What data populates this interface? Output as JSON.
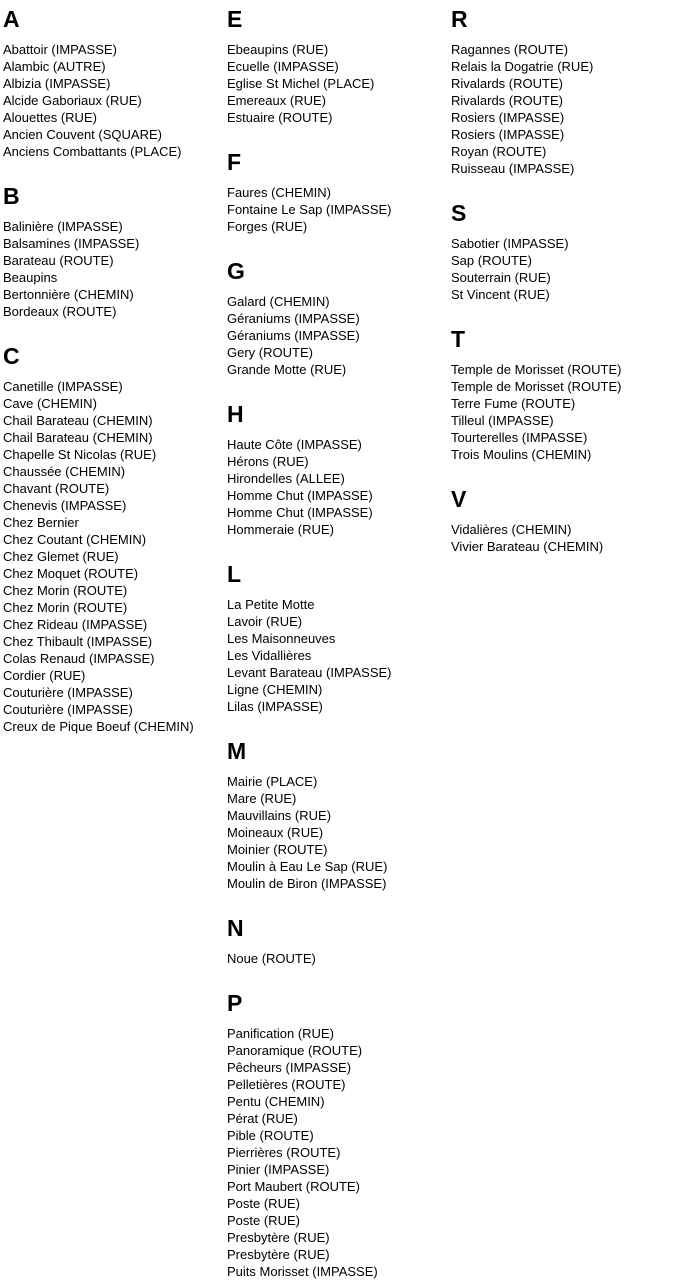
{
  "page": {
    "background_color": "#ffffff",
    "text_color": "#000000",
    "kind": "street-index"
  },
  "columns": [
    {
      "sections": [
        {
          "letter": "A",
          "entries": [
            "Abattoir (IMPASSE)",
            "Alambic (AUTRE)",
            "Albizia (IMPASSE)",
            "Alcide Gaboriaux (RUE)",
            "Alouettes (RUE)",
            "Ancien Couvent (SQUARE)",
            "Anciens Combattants (PLACE)"
          ]
        },
        {
          "letter": "B",
          "entries": [
            "Balinière (IMPASSE)",
            "Balsamines (IMPASSE)",
            "Barateau (ROUTE)",
            "Beaupins",
            "Bertonnière (CHEMIN)",
            "Bordeaux (ROUTE)"
          ]
        },
        {
          "letter": "C",
          "entries": [
            "Canetille (IMPASSE)",
            "Cave (CHEMIN)",
            "Chail Barateau (CHEMIN)",
            "Chail Barateau (CHEMIN)",
            "Chapelle St Nicolas (RUE)",
            "Chaussée (CHEMIN)",
            "Chavant (ROUTE)",
            "Chenevis (IMPASSE)",
            "Chez Bernier",
            "Chez Coutant (CHEMIN)",
            "Chez Glemet (RUE)",
            "Chez Moquet (ROUTE)",
            "Chez Morin (ROUTE)",
            "Chez Morin (ROUTE)",
            "Chez Rideau (IMPASSE)",
            "Chez Thibault (IMPASSE)",
            "Colas Renaud (IMPASSE)",
            "Cordier (RUE)",
            "Couturière (IMPASSE)",
            "Couturière (IMPASSE)",
            "Creux de Pique Boeuf (CHEMIN)"
          ]
        }
      ]
    },
    {
      "sections": [
        {
          "letter": "E",
          "entries": [
            "Ebeaupins (RUE)",
            "Ecuelle (IMPASSE)",
            "Eglise St Michel (PLACE)",
            "Emereaux (RUE)",
            "Estuaire (ROUTE)"
          ]
        },
        {
          "letter": "F",
          "entries": [
            "Faures (CHEMIN)",
            "Fontaine Le Sap (IMPASSE)",
            "Forges (RUE)"
          ]
        },
        {
          "letter": "G",
          "entries": [
            "Galard (CHEMIN)",
            "Géraniums (IMPASSE)",
            "Géraniums (IMPASSE)",
            "Gery (ROUTE)",
            "Grande Motte (RUE)"
          ]
        },
        {
          "letter": "H",
          "entries": [
            "Haute Côte (IMPASSE)",
            "Hérons (RUE)",
            "Hirondelles (ALLEE)",
            "Homme Chut (IMPASSE)",
            "Homme Chut (IMPASSE)",
            "Hommeraie (RUE)"
          ]
        },
        {
          "letter": "L",
          "entries": [
            "La Petite Motte",
            "Lavoir (RUE)",
            "Les Maisonneuves",
            "Les Vidallières",
            "Levant Barateau (IMPASSE)",
            "Ligne (CHEMIN)",
            "Lilas (IMPASSE)"
          ]
        },
        {
          "letter": "M",
          "entries": [
            "Mairie (PLACE)",
            "Mare (RUE)",
            "Mauvillains (RUE)",
            "Moineaux (RUE)",
            "Moinier (ROUTE)",
            "Moulin à Eau Le Sap (RUE)",
            "Moulin de Biron (IMPASSE)"
          ]
        },
        {
          "letter": "N",
          "entries": [
            "Noue (ROUTE)"
          ]
        },
        {
          "letter": "P",
          "entries": [
            "Panification (RUE)",
            "Panoramique (ROUTE)",
            "Pêcheurs (IMPASSE)",
            "Pelletières (ROUTE)",
            "Pentu (CHEMIN)",
            "Pérat (RUE)",
            "Pible (ROUTE)",
            "Pierrières (ROUTE)",
            "Pinier (IMPASSE)",
            "Port Maubert (ROUTE)",
            "Poste (RUE)",
            "Poste (RUE)",
            "Presbytère (RUE)",
            "Presbytère (RUE)",
            "Puits Morisset (IMPASSE)"
          ]
        }
      ]
    },
    {
      "sections": [
        {
          "letter": "R",
          "entries": [
            "Ragannes (ROUTE)",
            "Relais la Dogatrie (RUE)",
            "Rivalards (ROUTE)",
            "Rivalards (ROUTE)",
            "Rosiers (IMPASSE)",
            "Rosiers (IMPASSE)",
            "Royan (ROUTE)",
            "Ruisseau (IMPASSE)"
          ]
        },
        {
          "letter": "S",
          "entries": [
            "Sabotier (IMPASSE)",
            "Sap (ROUTE)",
            "Souterrain (RUE)",
            "St Vincent (RUE)"
          ]
        },
        {
          "letter": "T",
          "entries": [
            "Temple de Morisset (ROUTE)",
            "Temple de Morisset (ROUTE)",
            "Terre Fume (ROUTE)",
            "Tilleul (IMPASSE)",
            "Tourterelles (IMPASSE)",
            "Trois Moulins (CHEMIN)"
          ]
        },
        {
          "letter": "V",
          "entries": [
            "Vidalières (CHEMIN)",
            "Vivier Barateau (CHEMIN)"
          ]
        }
      ]
    }
  ]
}
